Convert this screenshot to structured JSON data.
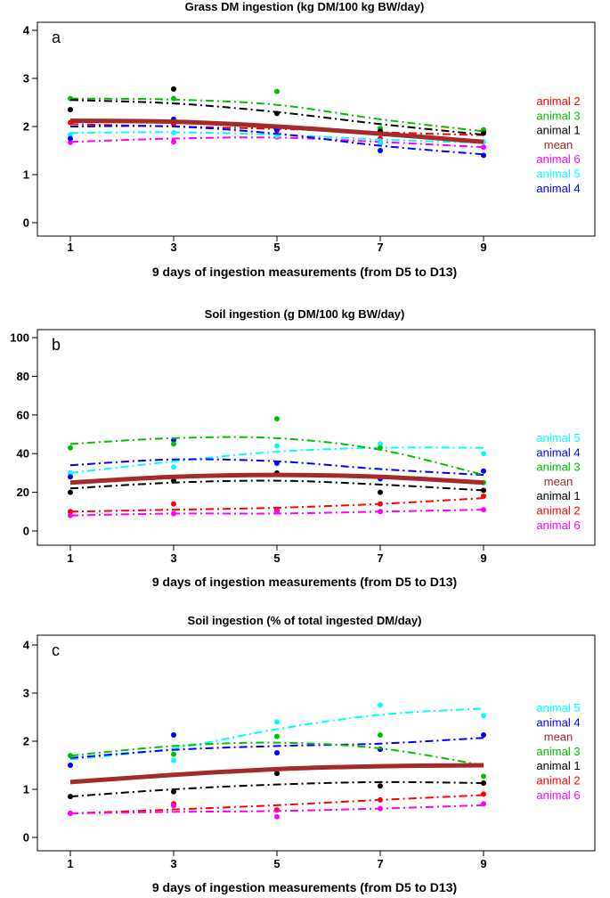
{
  "chart_data": [
    {
      "type": "scatter",
      "panel_label": "a",
      "title": "Grass DM ingestion (kg DM/100 kg BW/day)",
      "xlabel": "9 days of ingestion measurements (from D5 to D13)",
      "ylabel": "",
      "xlim": [
        0.5,
        9.6
      ],
      "ylim": [
        0,
        4
      ],
      "xticks": [
        1,
        3,
        5,
        7,
        9
      ],
      "yticks": [
        0,
        1,
        2,
        3,
        4
      ],
      "x": [
        1,
        3,
        5,
        7,
        9
      ],
      "grid": false,
      "legend_position": "right",
      "series": [
        {
          "name": "animal 2",
          "color": "#ff0000",
          "linestyle": "dashdot",
          "points": [
            2.08,
            2.05,
            1.92,
            1.75,
            1.9
          ],
          "fit": [
            2.05,
            2.0,
            1.95,
            1.88,
            1.82
          ]
        },
        {
          "name": "animal 3",
          "color": "#00c000",
          "linestyle": "dashdot",
          "points": [
            2.58,
            2.58,
            2.73,
            1.96,
            1.93
          ],
          "fit": [
            2.58,
            2.56,
            2.45,
            2.15,
            1.9
          ]
        },
        {
          "name": "animal 1",
          "color": "#000000",
          "linestyle": "dashdot",
          "points": [
            2.35,
            2.78,
            2.27,
            1.9,
            1.86
          ],
          "fit": [
            2.55,
            2.48,
            2.3,
            2.05,
            1.83
          ]
        },
        {
          "name": "mean",
          "color": "#a52a2a",
          "linestyle": "solid",
          "points": [],
          "fit": [
            2.12,
            2.1,
            2.0,
            1.85,
            1.68
          ]
        },
        {
          "name": "animal 6",
          "color": "#ff00ff",
          "linestyle": "dashdot",
          "points": [
            1.67,
            1.68,
            1.78,
            1.66,
            1.57
          ],
          "fit": [
            1.68,
            1.75,
            1.77,
            1.68,
            1.57
          ]
        },
        {
          "name": "animal 5",
          "color": "#00ffff",
          "linestyle": "dashdot",
          "points": [
            1.83,
            1.87,
            1.8,
            1.65,
            1.68
          ],
          "fit": [
            1.87,
            1.88,
            1.83,
            1.73,
            1.66
          ]
        },
        {
          "name": "animal 4",
          "color": "#0000ff",
          "linestyle": "dashdot",
          "points": [
            1.75,
            2.15,
            1.93,
            1.5,
            1.4
          ],
          "fit": [
            2.0,
            2.0,
            1.85,
            1.6,
            1.42
          ]
        }
      ]
    },
    {
      "type": "scatter",
      "panel_label": "b",
      "title": "Soil ingestion (g DM/100 kg BW/day)",
      "xlabel": "9 days of ingestion measurements (from D5 to D13)",
      "ylabel": "",
      "xlim": [
        0.5,
        9.6
      ],
      "ylim": [
        0,
        100
      ],
      "xticks": [
        1,
        3,
        5,
        7,
        9
      ],
      "yticks": [
        0,
        20,
        40,
        60,
        80,
        100
      ],
      "x": [
        1,
        3,
        5,
        7,
        9
      ],
      "grid": false,
      "legend_position": "right",
      "series": [
        {
          "name": "animal 5",
          "color": "#00ffff",
          "linestyle": "dashdot",
          "points": [
            30,
            33,
            44,
            45,
            40
          ],
          "fit": [
            30,
            36,
            41,
            43,
            43
          ]
        },
        {
          "name": "animal 4",
          "color": "#0000ff",
          "linestyle": "dashdot",
          "points": [
            28,
            47,
            35,
            27,
            31
          ],
          "fit": [
            34,
            37,
            36,
            32,
            29
          ]
        },
        {
          "name": "animal 3",
          "color": "#00c000",
          "linestyle": "dashdot",
          "points": [
            43,
            45,
            58,
            43,
            25
          ],
          "fit": [
            45,
            48,
            48,
            42,
            29
          ]
        },
        {
          "name": "mean",
          "color": "#a52a2a",
          "linestyle": "solid",
          "points": [],
          "fit": [
            25,
            28,
            29,
            28,
            25
          ]
        },
        {
          "name": "animal 1",
          "color": "#000000",
          "linestyle": "dashdot",
          "points": [
            20,
            26,
            30,
            20,
            21
          ],
          "fit": [
            22,
            25,
            26,
            24,
            21
          ]
        },
        {
          "name": "animal 2",
          "color": "#ff0000",
          "linestyle": "dashdot",
          "points": [
            10,
            14,
            11,
            14,
            18
          ],
          "fit": [
            10,
            11,
            12,
            14,
            17
          ]
        },
        {
          "name": "animal 6",
          "color": "#ff00ff",
          "linestyle": "dashdot",
          "points": [
            8,
            9,
            10,
            10,
            11
          ],
          "fit": [
            8,
            9,
            9,
            10,
            11
          ]
        }
      ]
    },
    {
      "type": "scatter",
      "panel_label": "c",
      "title": "Soil ingestion (% of total ingested DM/day)",
      "xlabel": "9 days of ingestion measurements (from D5 to D13)",
      "ylabel": "",
      "xlim": [
        0.5,
        9.6
      ],
      "ylim": [
        0,
        4
      ],
      "xticks": [
        1,
        3,
        5,
        7,
        9
      ],
      "yticks": [
        0,
        1,
        2,
        3,
        4
      ],
      "x": [
        1,
        3,
        5,
        7,
        9
      ],
      "grid": false,
      "legend_position": "right",
      "series": [
        {
          "name": "animal 5",
          "color": "#00ffff",
          "linestyle": "dashdot",
          "points": [
            1.7,
            1.6,
            2.4,
            2.75,
            2.53
          ],
          "fit": [
            1.62,
            1.85,
            2.25,
            2.55,
            2.68
          ]
        },
        {
          "name": "animal 4",
          "color": "#0000ff",
          "linestyle": "dashdot",
          "points": [
            1.5,
            2.13,
            1.76,
            1.83,
            2.13
          ],
          "fit": [
            1.65,
            1.82,
            1.9,
            1.95,
            2.07
          ]
        },
        {
          "name": "mean",
          "color": "#a52a2a",
          "linestyle": "solid",
          "points": [],
          "fit": [
            1.15,
            1.3,
            1.42,
            1.48,
            1.5
          ]
        },
        {
          "name": "animal 3",
          "color": "#00c000",
          "linestyle": "dashdot",
          "points": [
            1.7,
            1.73,
            2.1,
            2.13,
            1.27
          ],
          "fit": [
            1.7,
            1.9,
            1.97,
            1.85,
            1.5
          ]
        },
        {
          "name": "animal 1",
          "color": "#000000",
          "linestyle": "dashdot",
          "points": [
            0.85,
            0.95,
            1.33,
            1.07,
            1.13
          ],
          "fit": [
            0.85,
            1.0,
            1.1,
            1.15,
            1.13
          ]
        },
        {
          "name": "animal 2",
          "color": "#ff0000",
          "linestyle": "dashdot",
          "points": [
            0.5,
            0.7,
            0.57,
            0.78,
            0.9
          ],
          "fit": [
            0.5,
            0.58,
            0.67,
            0.78,
            0.88
          ]
        },
        {
          "name": "animal 6",
          "color": "#ff00ff",
          "linestyle": "dashdot",
          "points": [
            0.5,
            0.66,
            0.43,
            0.6,
            0.7
          ],
          "fit": [
            0.5,
            0.53,
            0.55,
            0.6,
            0.67
          ]
        }
      ]
    }
  ]
}
